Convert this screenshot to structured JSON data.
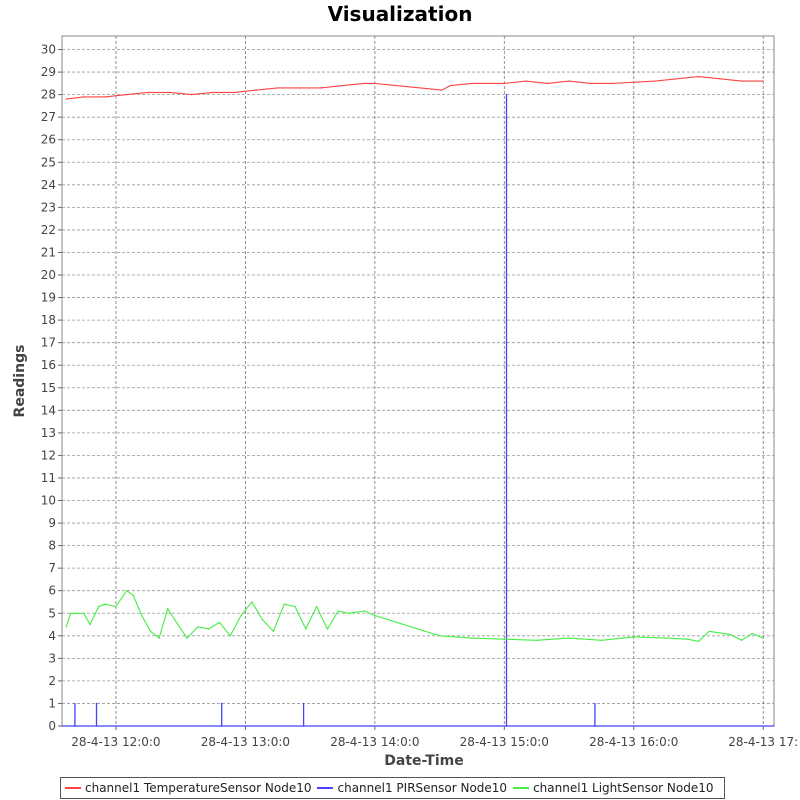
{
  "chart_data": {
    "type": "line",
    "title": "Visualization",
    "xlabel": "Date-Time",
    "ylabel": "Readings",
    "ylim": [
      0,
      30.6
    ],
    "xlim": [
      "2013-04-28 11:35",
      "2013-04-28 17:05"
    ],
    "grid": true,
    "legend_position": "bottom",
    "x_ticks": [
      {
        "t": "2013-04-28 12:00",
        "label": "28-4-13 12:0:0"
      },
      {
        "t": "2013-04-28 13:00",
        "label": "28-4-13 13:0:0"
      },
      {
        "t": "2013-04-28 14:00",
        "label": "28-4-13 14:0:0"
      },
      {
        "t": "2013-04-28 15:00",
        "label": "28-4-13 15:0:0"
      },
      {
        "t": "2013-04-28 16:00",
        "label": "28-4-13 16:0:0"
      },
      {
        "t": "2013-04-28 17:00",
        "label": "28-4-13 17:"
      }
    ],
    "y_ticks": [
      0,
      1,
      2,
      3,
      4,
      5,
      6,
      7,
      8,
      9,
      10,
      11,
      12,
      13,
      14,
      15,
      16,
      17,
      18,
      19,
      20,
      21,
      22,
      23,
      24,
      25,
      26,
      27,
      28,
      29,
      30
    ],
    "series": [
      {
        "name": "channel1 TemperatureSensor Node10",
        "color": "#ff4444",
        "x": [
          "2013-04-28 11:37",
          "2013-04-28 11:45",
          "2013-04-28 11:55",
          "2013-04-28 12:05",
          "2013-04-28 12:15",
          "2013-04-28 12:25",
          "2013-04-28 12:35",
          "2013-04-28 12:45",
          "2013-04-28 12:55",
          "2013-04-28 13:05",
          "2013-04-28 13:15",
          "2013-04-28 13:25",
          "2013-04-28 13:35",
          "2013-04-28 13:45",
          "2013-04-28 13:55",
          "2013-04-28 14:00",
          "2013-04-28 14:31",
          "2013-04-28 14:35",
          "2013-04-28 14:45",
          "2013-04-28 14:55",
          "2013-04-28 15:00",
          "2013-04-28 15:10",
          "2013-04-28 15:20",
          "2013-04-28 15:30",
          "2013-04-28 15:40",
          "2013-04-28 15:50",
          "2013-04-28 16:10",
          "2013-04-28 16:30",
          "2013-04-28 16:40",
          "2013-04-28 16:50",
          "2013-04-28 17:00"
        ],
        "values": [
          27.8,
          27.9,
          27.9,
          28.0,
          28.1,
          28.1,
          28.0,
          28.1,
          28.1,
          28.2,
          28.3,
          28.3,
          28.3,
          28.4,
          28.5,
          28.5,
          28.2,
          28.4,
          28.5,
          28.5,
          28.5,
          28.6,
          28.5,
          28.6,
          28.5,
          28.5,
          28.6,
          28.8,
          28.7,
          28.6,
          28.6
        ]
      },
      {
        "name": "channel1 PIRSensor Node10",
        "color": "#4444ff",
        "x": [
          "2013-04-28 11:35",
          "2013-04-28 11:41",
          "2013-04-28 11:41",
          "2013-04-28 11:41",
          "2013-04-28 11:51",
          "2013-04-28 11:51",
          "2013-04-28 11:51",
          "2013-04-28 12:49",
          "2013-04-28 12:49",
          "2013-04-28 12:49",
          "2013-04-28 13:27",
          "2013-04-28 13:27",
          "2013-04-28 13:27",
          "2013-04-28 15:01",
          "2013-04-28 15:01",
          "2013-04-28 15:01",
          "2013-04-28 15:42",
          "2013-04-28 15:42",
          "2013-04-28 15:42",
          "2013-04-28 17:05"
        ],
        "values": [
          0,
          0,
          1,
          0,
          0,
          1,
          0,
          0,
          1,
          0,
          0,
          1,
          0,
          0,
          28,
          0,
          0,
          1,
          0,
          0
        ]
      },
      {
        "name": "channel1 LightSensor Node10",
        "color": "#44ee44",
        "x": [
          "2013-04-28 11:37",
          "2013-04-28 11:39",
          "2013-04-28 11:45",
          "2013-04-28 11:48",
          "2013-04-28 11:52",
          "2013-04-28 11:55",
          "2013-04-28 12:00",
          "2013-04-28 12:05",
          "2013-04-28 12:08",
          "2013-04-28 12:12",
          "2013-04-28 12:16",
          "2013-04-28 12:20",
          "2013-04-28 12:24",
          "2013-04-28 12:28",
          "2013-04-28 12:33",
          "2013-04-28 12:38",
          "2013-04-28 12:43",
          "2013-04-28 12:48",
          "2013-04-28 12:53",
          "2013-04-28 12:58",
          "2013-04-28 13:03",
          "2013-04-28 13:08",
          "2013-04-28 13:13",
          "2013-04-28 13:18",
          "2013-04-28 13:23",
          "2013-04-28 13:28",
          "2013-04-28 13:33",
          "2013-04-28 13:38",
          "2013-04-28 13:43",
          "2013-04-28 13:48",
          "2013-04-28 13:55",
          "2013-04-28 14:00",
          "2013-04-28 14:30",
          "2013-04-28 14:45",
          "2013-04-28 15:00",
          "2013-04-28 15:15",
          "2013-04-28 15:30",
          "2013-04-28 15:45",
          "2013-04-28 16:00",
          "2013-04-28 16:15",
          "2013-04-28 16:25",
          "2013-04-28 16:30",
          "2013-04-28 16:35",
          "2013-04-28 16:45",
          "2013-04-28 16:50",
          "2013-04-28 16:55",
          "2013-04-28 17:00"
        ],
        "values": [
          4.4,
          5.0,
          5.0,
          4.5,
          5.3,
          5.4,
          5.3,
          6.0,
          5.8,
          4.9,
          4.2,
          3.9,
          5.2,
          4.6,
          3.9,
          4.4,
          4.3,
          4.6,
          4.0,
          4.9,
          5.5,
          4.7,
          4.2,
          5.4,
          5.3,
          4.3,
          5.3,
          4.3,
          5.1,
          5.0,
          5.1,
          4.9,
          4.0,
          3.9,
          3.85,
          3.8,
          3.9,
          3.8,
          3.95,
          3.9,
          3.85,
          3.75,
          4.2,
          4.05,
          3.8,
          4.1,
          3.9
        ]
      }
    ]
  }
}
